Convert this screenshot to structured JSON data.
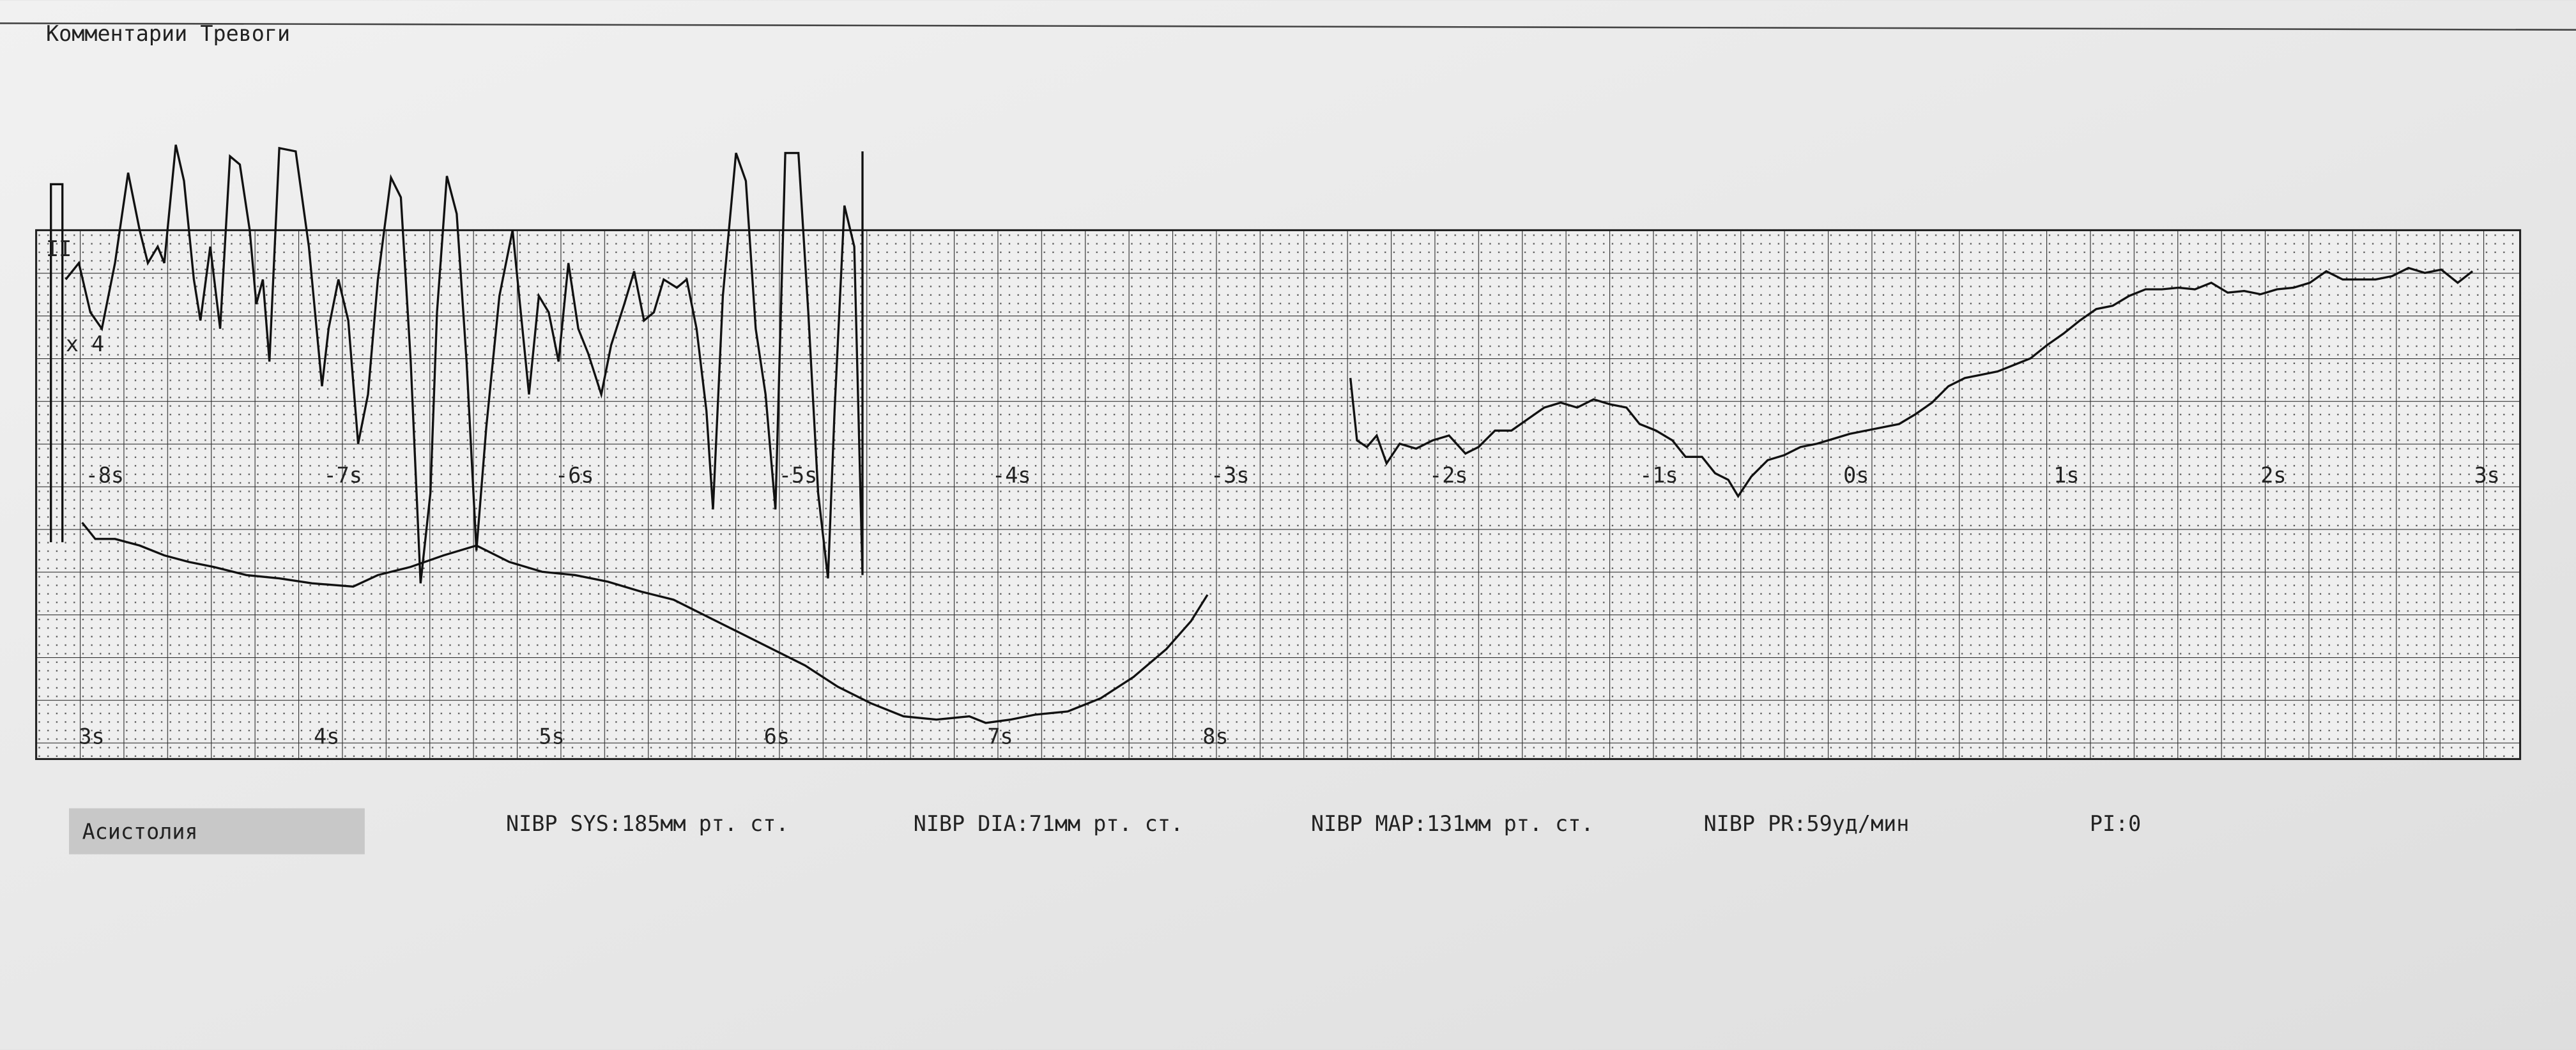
{
  "header": {
    "title": "Комментарии Тревоги"
  },
  "strip": {
    "lead": "II",
    "gain": "x 4",
    "upper_time_labels": [
      "-8s",
      "-7s",
      "-6s",
      "-5s",
      "-4s",
      "-3s",
      "-2s",
      "-1s",
      "0s",
      "1s",
      "2s",
      "3s"
    ],
    "lower_time_labels": [
      "3s",
      "4s",
      "5s",
      "6s",
      "7s",
      "8s"
    ]
  },
  "footer": {
    "alarm": "Асистолия",
    "measurements": [
      "NIBP SYS:185мм рт. ст.",
      "NIBP DIA:71мм рт. ст.",
      "NIBP MAP:131мм рт. ст.",
      "NIBP PR:59уд/мин",
      "PI:0"
    ]
  }
}
